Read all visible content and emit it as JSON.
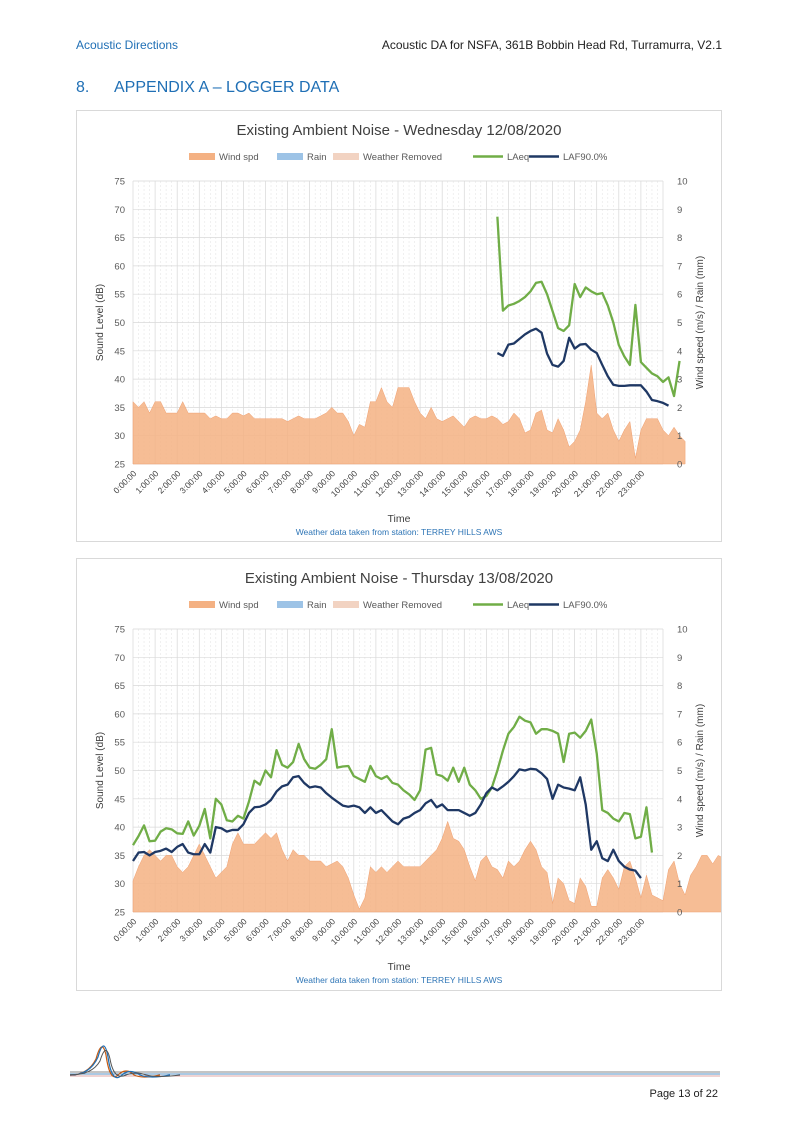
{
  "header": {
    "company": "Acoustic Directions",
    "doc_title": "Acoustic DA for NSFA, 361B Bobbin Head Rd, Turramurra, V2.1"
  },
  "section": {
    "number": "8.",
    "title": "APPENDIX A – LOGGER DATA"
  },
  "footer": {
    "page": "Page 13 of 22"
  },
  "colors": {
    "wind": "#f4b183",
    "rain": "#9dc3e6",
    "weather_removed": "#f2d3c2",
    "laeq": "#70ad47",
    "laf90": "#1f3864",
    "accent": "#1f6fb5"
  },
  "chart_data": [
    {
      "type": "line",
      "title": "Existing Ambient Noise - Wednesday 12/08/2020",
      "xlabel": "Time",
      "ylabel": "Sound Level (dB)",
      "y2label": "Wind speed (m/s) / Rain (mm)",
      "note": "Weather data taken from station: TERREY HILLS AWS",
      "ylim": [
        25,
        75
      ],
      "y2lim": [
        0,
        10
      ],
      "yticks": [
        "25",
        "30",
        "35",
        "40",
        "45",
        "50",
        "55",
        "60",
        "65",
        "70",
        "75"
      ],
      "y2ticks": [
        "0",
        "1",
        "2",
        "3",
        "4",
        "5",
        "6",
        "7",
        "8",
        "9",
        "10"
      ],
      "grid": true,
      "legend_position": "top",
      "legend": [
        "Wind spd",
        "Rain",
        "Weather Removed",
        "LAeq",
        "LAF90.0%"
      ],
      "x_tick_labels": [
        "0:00:00",
        "1:00:00",
        "2:00:00",
        "3:00:00",
        "4:00:00",
        "5:00:00",
        "6:00:00",
        "7:00:00",
        "8:00:00",
        "9:00:00",
        "10:00:00",
        "11:00:00",
        "12:00:00",
        "13:00:00",
        "14:00:00",
        "15:00:00",
        "16:00:00",
        "17:00:00",
        "18:00:00",
        "19:00:00",
        "20:00:00",
        "21:00:00",
        "22:00:00",
        "23:00:00"
      ],
      "x_hours_start": 0,
      "x_hours_step": 0.25,
      "series": [
        {
          "name": "Wind spd",
          "kind": "area",
          "axis": "right",
          "start_hour": 0,
          "values": [
            2.2,
            2.0,
            2.2,
            1.8,
            2.2,
            2.2,
            1.8,
            1.8,
            1.8,
            2.2,
            1.8,
            1.8,
            1.8,
            1.8,
            1.6,
            1.7,
            1.6,
            1.6,
            1.8,
            1.8,
            1.7,
            1.8,
            1.6,
            1.6,
            1.6,
            1.6,
            1.6,
            1.6,
            1.5,
            1.6,
            1.7,
            1.6,
            1.6,
            1.6,
            1.7,
            1.8,
            2.0,
            1.8,
            1.8,
            1.5,
            1.0,
            1.4,
            1.3,
            2.2,
            2.2,
            2.7,
            2.2,
            2.0,
            2.7,
            2.7,
            2.7,
            2.2,
            1.8,
            1.6,
            2.0,
            1.6,
            1.5,
            1.6,
            1.7,
            1.5,
            1.3,
            1.6,
            1.7,
            1.6,
            1.6,
            1.7,
            1.6,
            1.4,
            1.5,
            1.8,
            1.6,
            1.1,
            1.2,
            1.8,
            1.9,
            1.2,
            1.1,
            1.6,
            1.2,
            0.6,
            0.8,
            1.2,
            2.2,
            3.5,
            1.8,
            1.6,
            1.8,
            1.2,
            0.8,
            1.2,
            1.5,
            0.2,
            1.2,
            1.6,
            1.6,
            1.6,
            1.2,
            1.0,
            1.3,
            1.0,
            0.8
          ]
        },
        {
          "name": "LAeq",
          "kind": "line",
          "axis": "left",
          "start_hour": 16.5,
          "values": [
            68.7,
            52.1,
            53.0,
            53.3,
            53.8,
            54.5,
            55.5,
            57.0,
            57.2,
            55.0,
            52.0,
            49.0,
            48.5,
            49.5,
            56.8,
            54.5,
            56.2,
            55.5,
            55.0,
            55.2,
            53.0,
            50.0,
            46.0,
            44.0,
            42.5,
            53.1,
            43.0,
            42.0,
            41.0,
            40.5,
            39.5,
            40.3,
            37.0,
            43.2
          ]
        },
        {
          "name": "LAF90.0%",
          "kind": "line",
          "axis": "left",
          "start_hour": 16.5,
          "values": [
            44.6,
            44.1,
            46.1,
            46.3,
            47.1,
            47.9,
            48.5,
            48.9,
            48.2,
            44.5,
            42.5,
            42.2,
            43.2,
            47.3,
            45.4,
            46.1,
            46.2,
            45.2,
            44.6,
            42.5,
            40.5,
            39.0,
            38.8,
            38.8,
            38.9,
            38.9,
            38.9,
            37.8,
            36.3,
            36.1,
            35.8,
            35.3
          ]
        }
      ]
    },
    {
      "type": "line",
      "title": "Existing Ambient Noise - Thursday 13/08/2020",
      "xlabel": "Time",
      "ylabel": "Sound Level (dB)",
      "y2label": "Wind speed (m/s) / Rain (mm)",
      "note": "Weather data taken from station: TERREY HILLS AWS",
      "ylim": [
        25,
        75
      ],
      "y2lim": [
        0,
        10
      ],
      "yticks": [
        "25",
        "30",
        "35",
        "40",
        "45",
        "50",
        "55",
        "60",
        "65",
        "70",
        "75"
      ],
      "y2ticks": [
        "0",
        "1",
        "2",
        "3",
        "4",
        "5",
        "6",
        "7",
        "8",
        "9",
        "10"
      ],
      "grid": true,
      "legend_position": "top",
      "legend": [
        "Wind spd",
        "Rain",
        "Weather Removed",
        "LAeq",
        "LAF90.0%"
      ],
      "x_tick_labels": [
        "0:00:00",
        "1:00:00",
        "2:00:00",
        "3:00:00",
        "4:00:00",
        "5:00:00",
        "6:00:00",
        "7:00:00",
        "8:00:00",
        "9:00:00",
        "10:00:00",
        "11:00:00",
        "12:00:00",
        "13:00:00",
        "14:00:00",
        "15:00:00",
        "16:00:00",
        "17:00:00",
        "18:00:00",
        "19:00:00",
        "20:00:00",
        "21:00:00",
        "22:00:00",
        "23:00:00"
      ],
      "x_hours_start": 0,
      "x_hours_step": 0.25,
      "series": [
        {
          "name": "Wind spd",
          "kind": "area",
          "axis": "right",
          "start_hour": 0,
          "values": [
            1.1,
            1.6,
            2.0,
            2.2,
            2.0,
            1.8,
            2.0,
            2.0,
            1.6,
            1.4,
            1.6,
            2.0,
            2.4,
            2.0,
            1.6,
            1.2,
            1.4,
            1.6,
            2.4,
            2.8,
            2.4,
            2.4,
            2.4,
            2.6,
            2.8,
            2.6,
            2.8,
            2.2,
            1.8,
            2.2,
            2.0,
            2.0,
            1.8,
            1.8,
            1.8,
            1.6,
            1.7,
            1.8,
            1.6,
            1.2,
            0.6,
            0.1,
            0.5,
            1.6,
            1.4,
            1.6,
            1.4,
            1.6,
            1.8,
            1.6,
            1.6,
            1.6,
            1.6,
            1.8,
            2.0,
            2.2,
            2.6,
            3.2,
            2.6,
            2.5,
            2.2,
            1.6,
            1.1,
            1.8,
            2.0,
            1.6,
            1.5,
            1.2,
            1.8,
            1.6,
            1.8,
            2.2,
            2.5,
            2.2,
            1.6,
            1.4,
            0.3,
            1.2,
            1.0,
            0.4,
            0.3,
            1.2,
            0.9,
            0.2,
            0.2,
            1.2,
            1.5,
            1.2,
            0.8,
            1.6,
            1.8,
            1.2,
            0.5,
            1.3,
            0.6,
            0.5,
            0.4,
            1.5,
            1.8,
            1.0,
            0.6,
            1.3,
            1.6,
            2.0,
            2.0,
            1.7,
            2.0,
            1.9,
            2.0,
            2.0,
            1.8,
            1.8
          ]
        },
        {
          "name": "LAeq",
          "kind": "line",
          "axis": "left",
          "start_hour": 0,
          "values": [
            36.8,
            38.4,
            40.3,
            37.5,
            37.6,
            39.2,
            39.8,
            39.6,
            38.9,
            38.8,
            41.0,
            38.5,
            40.2,
            43.2,
            38.0,
            45.0,
            44.0,
            41.2,
            41.0,
            42.0,
            41.5,
            44.5,
            48.2,
            47.5,
            50.0,
            48.8,
            53.6,
            51.0,
            50.5,
            51.5,
            54.7,
            52.0,
            50.5,
            50.3,
            51.0,
            52.0,
            57.3,
            50.5,
            50.7,
            50.8,
            49.0,
            48.5,
            48.0,
            50.8,
            49.0,
            48.5,
            49.0,
            47.8,
            47.5,
            46.5,
            45.8,
            44.8,
            46.5,
            53.7,
            54.0,
            49.3,
            49.0,
            48.2,
            50.5,
            48.0,
            50.5,
            47.5,
            46.5,
            45.0,
            45.5,
            47.0,
            50.0,
            53.5,
            56.5,
            57.7,
            59.5,
            58.8,
            58.5,
            56.5,
            57.3,
            57.3,
            57.0,
            56.5,
            51.5,
            56.5,
            56.7,
            55.8,
            57.0,
            59.0,
            53.0,
            43.0,
            42.5,
            41.5,
            41.0,
            42.5,
            42.3,
            38.0,
            38.3,
            43.5,
            35.5
          ]
        },
        {
          "name": "LAF90.0%",
          "kind": "line",
          "axis": "left",
          "start_hour": 0,
          "values": [
            34.0,
            35.5,
            35.6,
            35.0,
            35.6,
            35.8,
            36.2,
            35.6,
            36.5,
            37.0,
            35.5,
            35.2,
            35.2,
            37.0,
            35.5,
            40.0,
            39.8,
            39.2,
            39.5,
            39.5,
            40.5,
            42.5,
            43.5,
            43.6,
            44.0,
            44.8,
            46.3,
            47.2,
            47.5,
            48.8,
            49.0,
            47.8,
            47.0,
            47.2,
            47.0,
            46.0,
            45.2,
            44.5,
            43.8,
            43.6,
            43.8,
            43.5,
            42.5,
            43.5,
            42.5,
            43.0,
            42.0,
            41.0,
            40.5,
            41.5,
            41.8,
            42.5,
            43.0,
            44.2,
            44.8,
            43.5,
            44.0,
            43.0,
            43.0,
            43.0,
            42.5,
            42.0,
            42.5,
            44.0,
            46.0,
            47.0,
            46.5,
            47.2,
            48.0,
            49.0,
            50.2,
            50.0,
            50.3,
            50.2,
            49.5,
            48.5,
            45.0,
            47.5,
            47.0,
            46.8,
            46.5,
            48.8,
            44.0,
            36.0,
            37.5,
            34.5,
            34.0,
            36.0,
            34.0,
            33.0,
            32.5,
            32.3,
            31.0
          ]
        }
      ]
    }
  ]
}
